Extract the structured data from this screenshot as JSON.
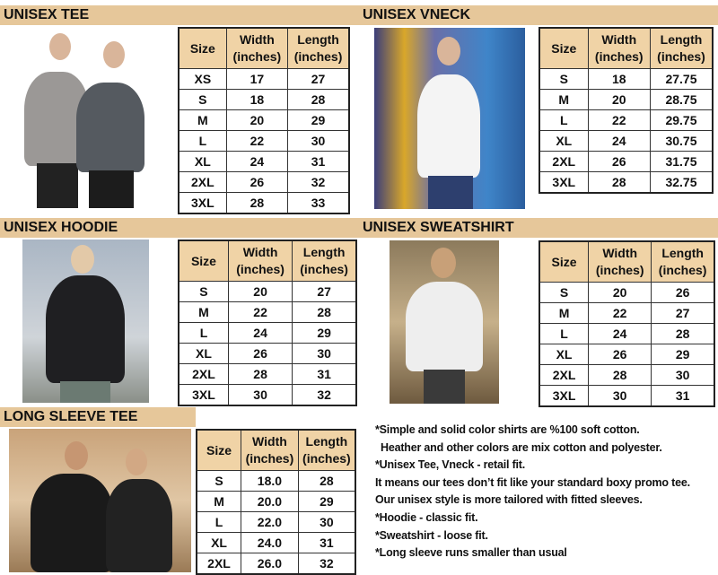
{
  "headers": {
    "size": "Size",
    "width": "Width (inches)",
    "length": "Length (inches)"
  },
  "colors": {
    "bar": "#e6c79a",
    "header_cell": "#f0d3a6"
  },
  "sections": [
    {
      "id": "tee",
      "title": "UNISEX TEE",
      "rows": [
        [
          "XS",
          "17",
          "27"
        ],
        [
          "S",
          "18",
          "28"
        ],
        [
          "M",
          "20",
          "29"
        ],
        [
          "L",
          "22",
          "30"
        ],
        [
          "XL",
          "24",
          "31"
        ],
        [
          "2XL",
          "26",
          "32"
        ],
        [
          "3XL",
          "28",
          "33"
        ]
      ]
    },
    {
      "id": "vneck",
      "title": "UNISEX VNECK",
      "rows": [
        [
          "S",
          "18",
          "27.75"
        ],
        [
          "M",
          "20",
          "28.75"
        ],
        [
          "L",
          "22",
          "29.75"
        ],
        [
          "XL",
          "24",
          "30.75"
        ],
        [
          "2XL",
          "26",
          "31.75"
        ],
        [
          "3XL",
          "28",
          "32.75"
        ]
      ]
    },
    {
      "id": "hoodie",
      "title": "UNISEX HOODIE",
      "rows": [
        [
          "S",
          "20",
          "27"
        ],
        [
          "M",
          "22",
          "28"
        ],
        [
          "L",
          "24",
          "29"
        ],
        [
          "XL",
          "26",
          "30"
        ],
        [
          "2XL",
          "28",
          "31"
        ],
        [
          "3XL",
          "30",
          "32"
        ]
      ]
    },
    {
      "id": "sweatshirt",
      "title": "UNISEX SWEATSHIRT",
      "rows": [
        [
          "S",
          "20",
          "26"
        ],
        [
          "M",
          "22",
          "27"
        ],
        [
          "L",
          "24",
          "28"
        ],
        [
          "XL",
          "26",
          "29"
        ],
        [
          "2XL",
          "28",
          "30"
        ],
        [
          "3XL",
          "30",
          "31"
        ]
      ]
    },
    {
      "id": "longsleeve",
      "title": "LONG SLEEVE TEE",
      "rows": [
        [
          "S",
          "18.0",
          "28"
        ],
        [
          "M",
          "20.0",
          "29"
        ],
        [
          "L",
          "22.0",
          "30"
        ],
        [
          "XL",
          "24.0",
          "31"
        ],
        [
          "2XL",
          "26.0",
          "32"
        ]
      ]
    }
  ],
  "notes": [
    "*Simple and solid color shirts are %100 soft cotton.",
    "  Heather and other colors are mix cotton and polyester.",
    "*Unisex Tee, Vneck - retail fit.",
    "It means our tees don’t fit like your standard boxy promo tee.",
    "Our unisex style is more tailored with fitted sleeves.",
    "*Hoodie - classic fit.",
    "*Sweatshirt - loose fit.",
    "*Long sleeve runs smaller than usual"
  ]
}
